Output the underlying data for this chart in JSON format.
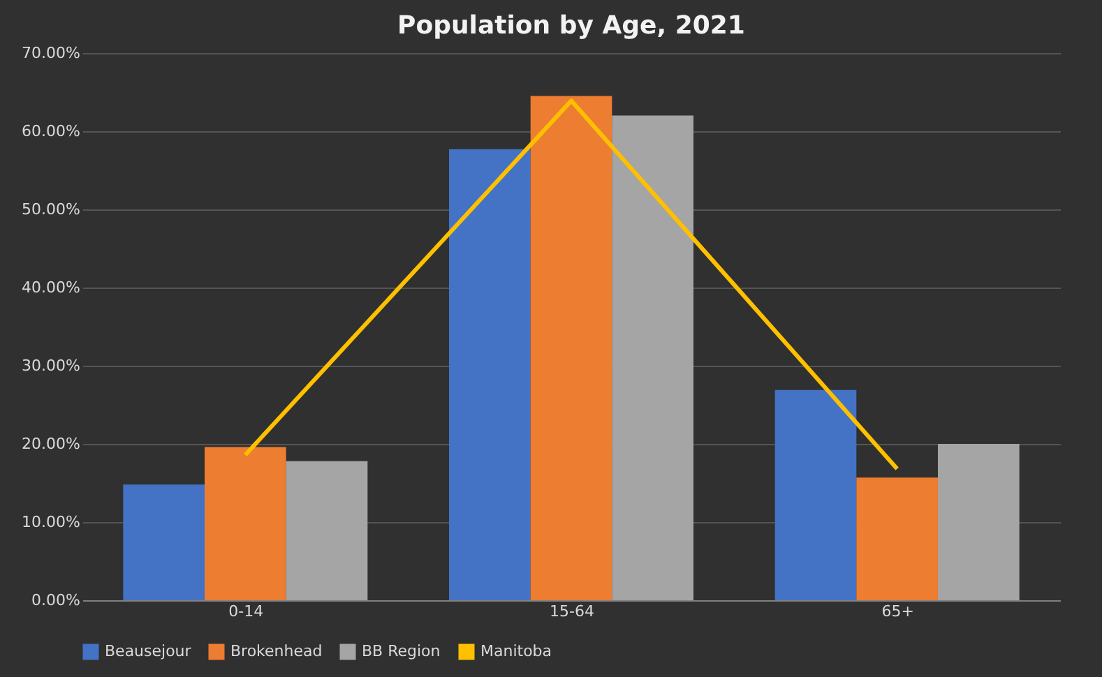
{
  "chart_data": {
    "type": "bar",
    "title": "Population by Age, 2021",
    "categories": [
      "0-14",
      "15-64",
      "65+"
    ],
    "series": [
      {
        "name": "Beausejour",
        "color": "#4472c4",
        "values": [
          14.8,
          57.7,
          26.9
        ]
      },
      {
        "name": "Brokenhead",
        "color": "#ed7d31",
        "values": [
          19.6,
          64.5,
          15.7
        ]
      },
      {
        "name": "BB Region",
        "color": "#a5a5a5",
        "values": [
          17.8,
          62.0,
          20.0
        ]
      },
      {
        "name": "Manitoba",
        "color": "#ffc000",
        "type": "line",
        "values": [
          18.6,
          63.9,
          16.8
        ]
      }
    ],
    "ylim": [
      0,
      70
    ],
    "yticks": [
      {
        "value": 0,
        "label": "0.00%"
      },
      {
        "value": 10,
        "label": "10.00%"
      },
      {
        "value": 20,
        "label": "20.00%"
      },
      {
        "value": 30,
        "label": "30.00%"
      },
      {
        "value": 40,
        "label": "40.00%"
      },
      {
        "value": 50,
        "label": "50.00%"
      },
      {
        "value": 60,
        "label": "60.00%"
      },
      {
        "value": 70,
        "label": "70.00%"
      }
    ],
    "grid": "y",
    "legend": "bottom",
    "line_style": "solid"
  }
}
